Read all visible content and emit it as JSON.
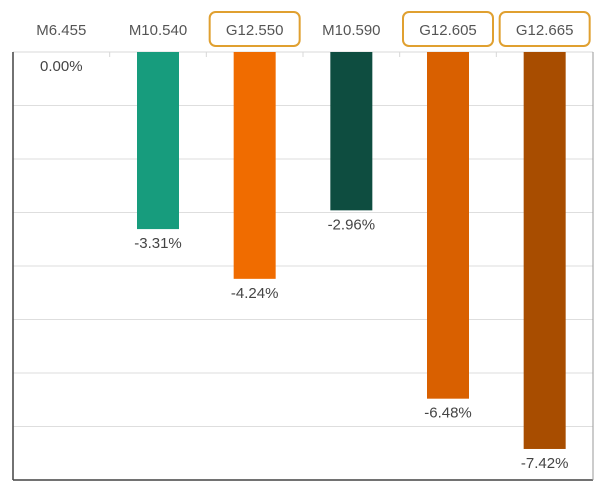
{
  "chart_data": {
    "type": "bar",
    "orientation": "vertical",
    "categories": [
      "M6.455",
      "M10.540",
      "G12.550",
      "M10.590",
      "G12.605",
      "G12.665"
    ],
    "values": [
      0.0,
      -3.31,
      -4.24,
      -2.96,
      -6.48,
      -7.42
    ],
    "data_labels": [
      "0.00%",
      "-3.31%",
      "-4.24%",
      "-2.96%",
      "-6.48%",
      "-7.42%"
    ],
    "highlighted_categories": [
      "G12.550",
      "G12.605",
      "G12.665"
    ],
    "colors": [
      "#179C7D",
      "#179C7D",
      "#F06C00",
      "#0E4D40",
      "#D96000",
      "#A84D00"
    ],
    "highlight_color": "#E0A030",
    "ylim": [
      -8,
      0
    ],
    "grid": true,
    "category_axis_position": "top",
    "title": "",
    "xlabel": "",
    "ylabel": ""
  }
}
